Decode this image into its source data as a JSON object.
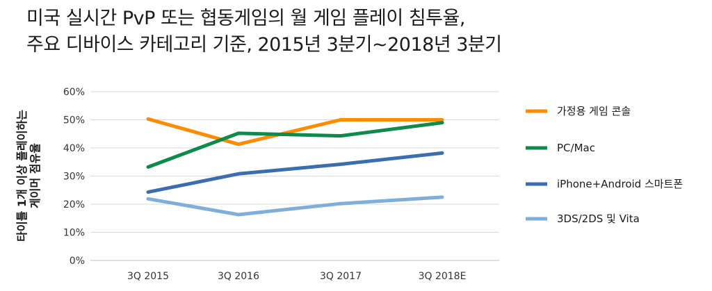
{
  "title": {
    "line1": "미국 실시간 PvP 또는 협동게임의 월 게임 플레이 침투율,",
    "line2": "주요 디바이스 카테고리 기준, 2015년 3분기~2018년 3분기"
  },
  "chart_data": {
    "type": "line",
    "categories": [
      "3Q 2015",
      "3Q 2016",
      "3Q 2017",
      "3Q 2018E"
    ],
    "ylabel_lines": [
      "타이틀 1개 이상 플레이하는",
      "게이머 점유율"
    ],
    "ylim": [
      0,
      60
    ],
    "yticks": [
      "0%",
      "10%",
      "20%",
      "30%",
      "40%",
      "50%",
      "60%"
    ],
    "grid": true,
    "legend_position": "right",
    "series": [
      {
        "name": "가정용 게임 콘솔",
        "color": "#FF8C00",
        "values": [
          50.3,
          41.3,
          50.0,
          50.0
        ]
      },
      {
        "name": "PC/Mac",
        "color": "#0E8A4A",
        "values": [
          33.2,
          45.2,
          44.3,
          49.0
        ]
      },
      {
        "name": "iPhone+Android 스마트폰",
        "color": "#3C6DAE",
        "values": [
          24.3,
          30.8,
          34.2,
          38.2
        ]
      },
      {
        "name": "3DS/2DS 및 Vita",
        "color": "#7FAFD9",
        "values": [
          21.9,
          16.3,
          20.2,
          22.5
        ]
      }
    ]
  }
}
